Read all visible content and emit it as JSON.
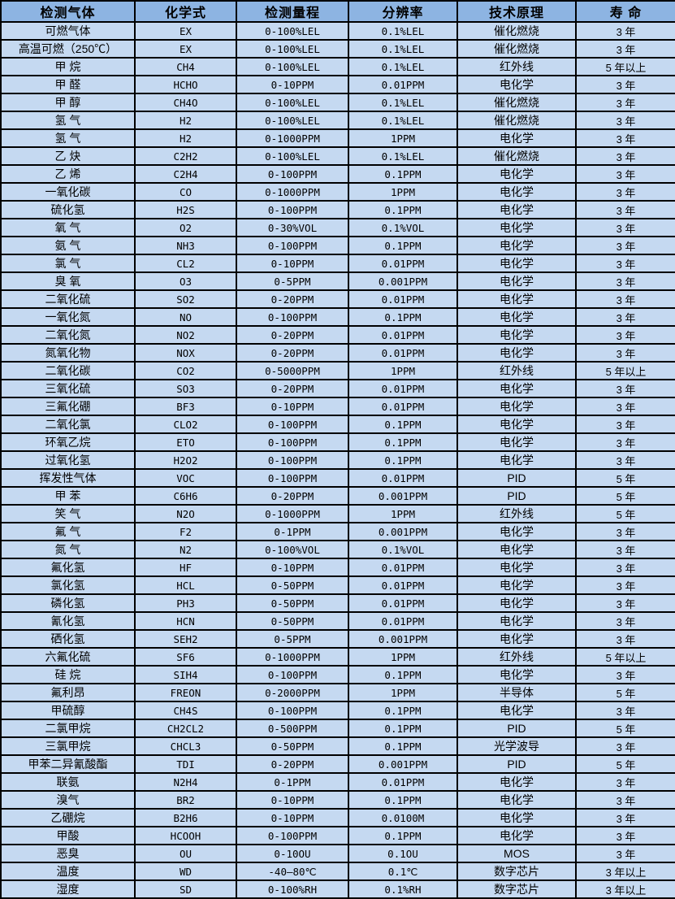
{
  "colors": {
    "header_bg": "#8DB4E2",
    "row_bg": "#C5D9F1",
    "border": "#000000",
    "text": "#000000"
  },
  "table": {
    "columns": [
      {
        "key": "gas",
        "label": "检测气体"
      },
      {
        "key": "formula",
        "label": "化学式"
      },
      {
        "key": "range",
        "label": "检测量程"
      },
      {
        "key": "resolution",
        "label": "分辨率"
      },
      {
        "key": "principle",
        "label": "技术原理"
      },
      {
        "key": "lifespan",
        "label": "寿 命"
      }
    ],
    "rows": [
      [
        "可燃气体",
        "EX",
        "0-100%LEL",
        "0.1%LEL",
        "催化燃烧",
        "3 年"
      ],
      [
        "高温可燃（250℃）",
        "EX",
        "0-100%LEL",
        "0.1%LEL",
        "催化燃烧",
        "3 年"
      ],
      [
        "甲 烷",
        "CH4",
        "0-100%LEL",
        "0.1%LEL",
        "红外线",
        "5 年以上"
      ],
      [
        "甲 醛",
        "HCHO",
        "0-10PPM",
        "0.01PPM",
        "电化学",
        "3 年"
      ],
      [
        "甲 醇",
        "CH4O",
        "0-100%LEL",
        "0.1%LEL",
        "催化燃烧",
        "3 年"
      ],
      [
        "氢 气",
        "H2",
        "0-100%LEL",
        "0.1%LEL",
        "催化燃烧",
        "3 年"
      ],
      [
        "氢 气",
        "H2",
        "0-1000PPM",
        "1PPM",
        "电化学",
        "3 年"
      ],
      [
        "乙 炔",
        "C2H2",
        "0-100%LEL",
        "0.1%LEL",
        "催化燃烧",
        "3 年"
      ],
      [
        "乙 烯",
        "C2H4",
        "0-100PPM",
        "0.1PPM",
        "电化学",
        "3 年"
      ],
      [
        "一氧化碳",
        "CO",
        "0-1000PPM",
        "1PPM",
        "电化学",
        "3 年"
      ],
      [
        "硫化氢",
        "H2S",
        "0-100PPM",
        "0.1PPM",
        "电化学",
        "3 年"
      ],
      [
        "氧 气",
        "O2",
        "0-30%VOL",
        "0.1%VOL",
        "电化学",
        "3 年"
      ],
      [
        "氨 气",
        "NH3",
        "0-100PPM",
        "0.1PPM",
        "电化学",
        "3 年"
      ],
      [
        "氯 气",
        "CL2",
        "0-10PPM",
        "0.01PPM",
        "电化学",
        "3 年"
      ],
      [
        "臭 氧",
        "O3",
        "0-5PPM",
        "0.001PPM",
        "电化学",
        "3 年"
      ],
      [
        "二氧化硫",
        "SO2",
        "0-20PPM",
        "0.01PPM",
        "电化学",
        "3 年"
      ],
      [
        "一氧化氮",
        "NO",
        "0-100PPM",
        "0.1PPM",
        "电化学",
        "3 年"
      ],
      [
        "二氧化氮",
        "NO2",
        "0-20PPM",
        "0.01PPM",
        "电化学",
        "3 年"
      ],
      [
        "氮氧化物",
        "NOX",
        "0-20PPM",
        "0.01PPM",
        "电化学",
        "3 年"
      ],
      [
        "二氧化碳",
        "CO2",
        "0-5000PPM",
        "1PPM",
        "红外线",
        "5 年以上"
      ],
      [
        "三氧化硫",
        "SO3",
        "0-20PPM",
        "0.01PPM",
        "电化学",
        "3 年"
      ],
      [
        "三氟化硼",
        "BF3",
        "0-10PPM",
        "0.01PPM",
        "电化学",
        "3 年"
      ],
      [
        "二氧化氯",
        "CLO2",
        "0-100PPM",
        "0.1PPM",
        "电化学",
        "3 年"
      ],
      [
        "环氧乙烷",
        "ETO",
        "0-100PPM",
        "0.1PPM",
        "电化学",
        "3 年"
      ],
      [
        "过氧化氢",
        "H2O2",
        "0-100PPM",
        "0.1PPM",
        "电化学",
        "3 年"
      ],
      [
        "挥发性气体",
        "VOC",
        "0-100PPM",
        "0.01PPM",
        "PID",
        "5 年"
      ],
      [
        "甲 苯",
        "C6H6",
        "0-20PPM",
        "0.001PPM",
        "PID",
        "5 年"
      ],
      [
        "笑 气",
        "N2O",
        "0-1000PPM",
        "1PPM",
        "红外线",
        "5 年"
      ],
      [
        "氟 气",
        "F2",
        "0-1PPM",
        "0.001PPM",
        "电化学",
        "3 年"
      ],
      [
        "氮 气",
        "N2",
        "0-100%VOL",
        "0.1%VOL",
        "电化学",
        "3 年"
      ],
      [
        "氟化氢",
        "HF",
        "0-10PPM",
        "0.01PPM",
        "电化学",
        "3 年"
      ],
      [
        "氯化氢",
        "HCL",
        "0-50PPM",
        "0.01PPM",
        "电化学",
        "3 年"
      ],
      [
        "磷化氢",
        "PH3",
        "0-50PPM",
        "0.01PPM",
        "电化学",
        "3 年"
      ],
      [
        "氰化氢",
        "HCN",
        "0-50PPM",
        "0.01PPM",
        "电化学",
        "3 年"
      ],
      [
        "硒化氢",
        "SEH2",
        "0-5PPM",
        "0.001PPM",
        "电化学",
        "3 年"
      ],
      [
        "六氟化硫",
        "SF6",
        "0-1000PPM",
        "1PPM",
        "红外线",
        "5 年以上"
      ],
      [
        "硅 烷",
        "SIH4",
        "0-100PPM",
        "0.1PPM",
        "电化学",
        "3 年"
      ],
      [
        "氟利昂",
        "FREON",
        "0-2000PPM",
        "1PPM",
        "半导体",
        "5 年"
      ],
      [
        "甲硫醇",
        "CH4S",
        "0-100PPM",
        "0.1PPM",
        "电化学",
        "3 年"
      ],
      [
        "二氯甲烷",
        "CH2CL2",
        "0-500PPM",
        "0.1PPM",
        "PID",
        "5 年"
      ],
      [
        "三氯甲烷",
        "CHCL3",
        "0-50PPM",
        "0.1PPM",
        "光学波导",
        "3 年"
      ],
      [
        "甲苯二异氰酸酯",
        "TDI",
        "0-20PPM",
        "0.001PPM",
        "PID",
        "5 年"
      ],
      [
        "联氨",
        "N2H4",
        "0-1PPM",
        "0.01PPM",
        "电化学",
        "3 年"
      ],
      [
        "溴气",
        "BR2",
        "0-10PPM",
        "0.1PPM",
        "电化学",
        "3 年"
      ],
      [
        "乙硼烷",
        "B2H6",
        "0-10PPM",
        "0.0100M",
        "电化学",
        "3 年"
      ],
      [
        "甲酸",
        "HCOOH",
        "0-100PPM",
        "0.1PPM",
        "电化学",
        "3 年"
      ],
      [
        "恶臭",
        "OU",
        "0-10OU",
        "0.1OU",
        "MOS",
        "3 年"
      ],
      [
        "温度",
        "WD",
        "-40—80℃",
        "0.1℃",
        "数字芯片",
        "3 年以上"
      ],
      [
        "湿度",
        "SD",
        "0-100%RH",
        "0.1%RH",
        "数字芯片",
        "3 年以上"
      ]
    ]
  }
}
